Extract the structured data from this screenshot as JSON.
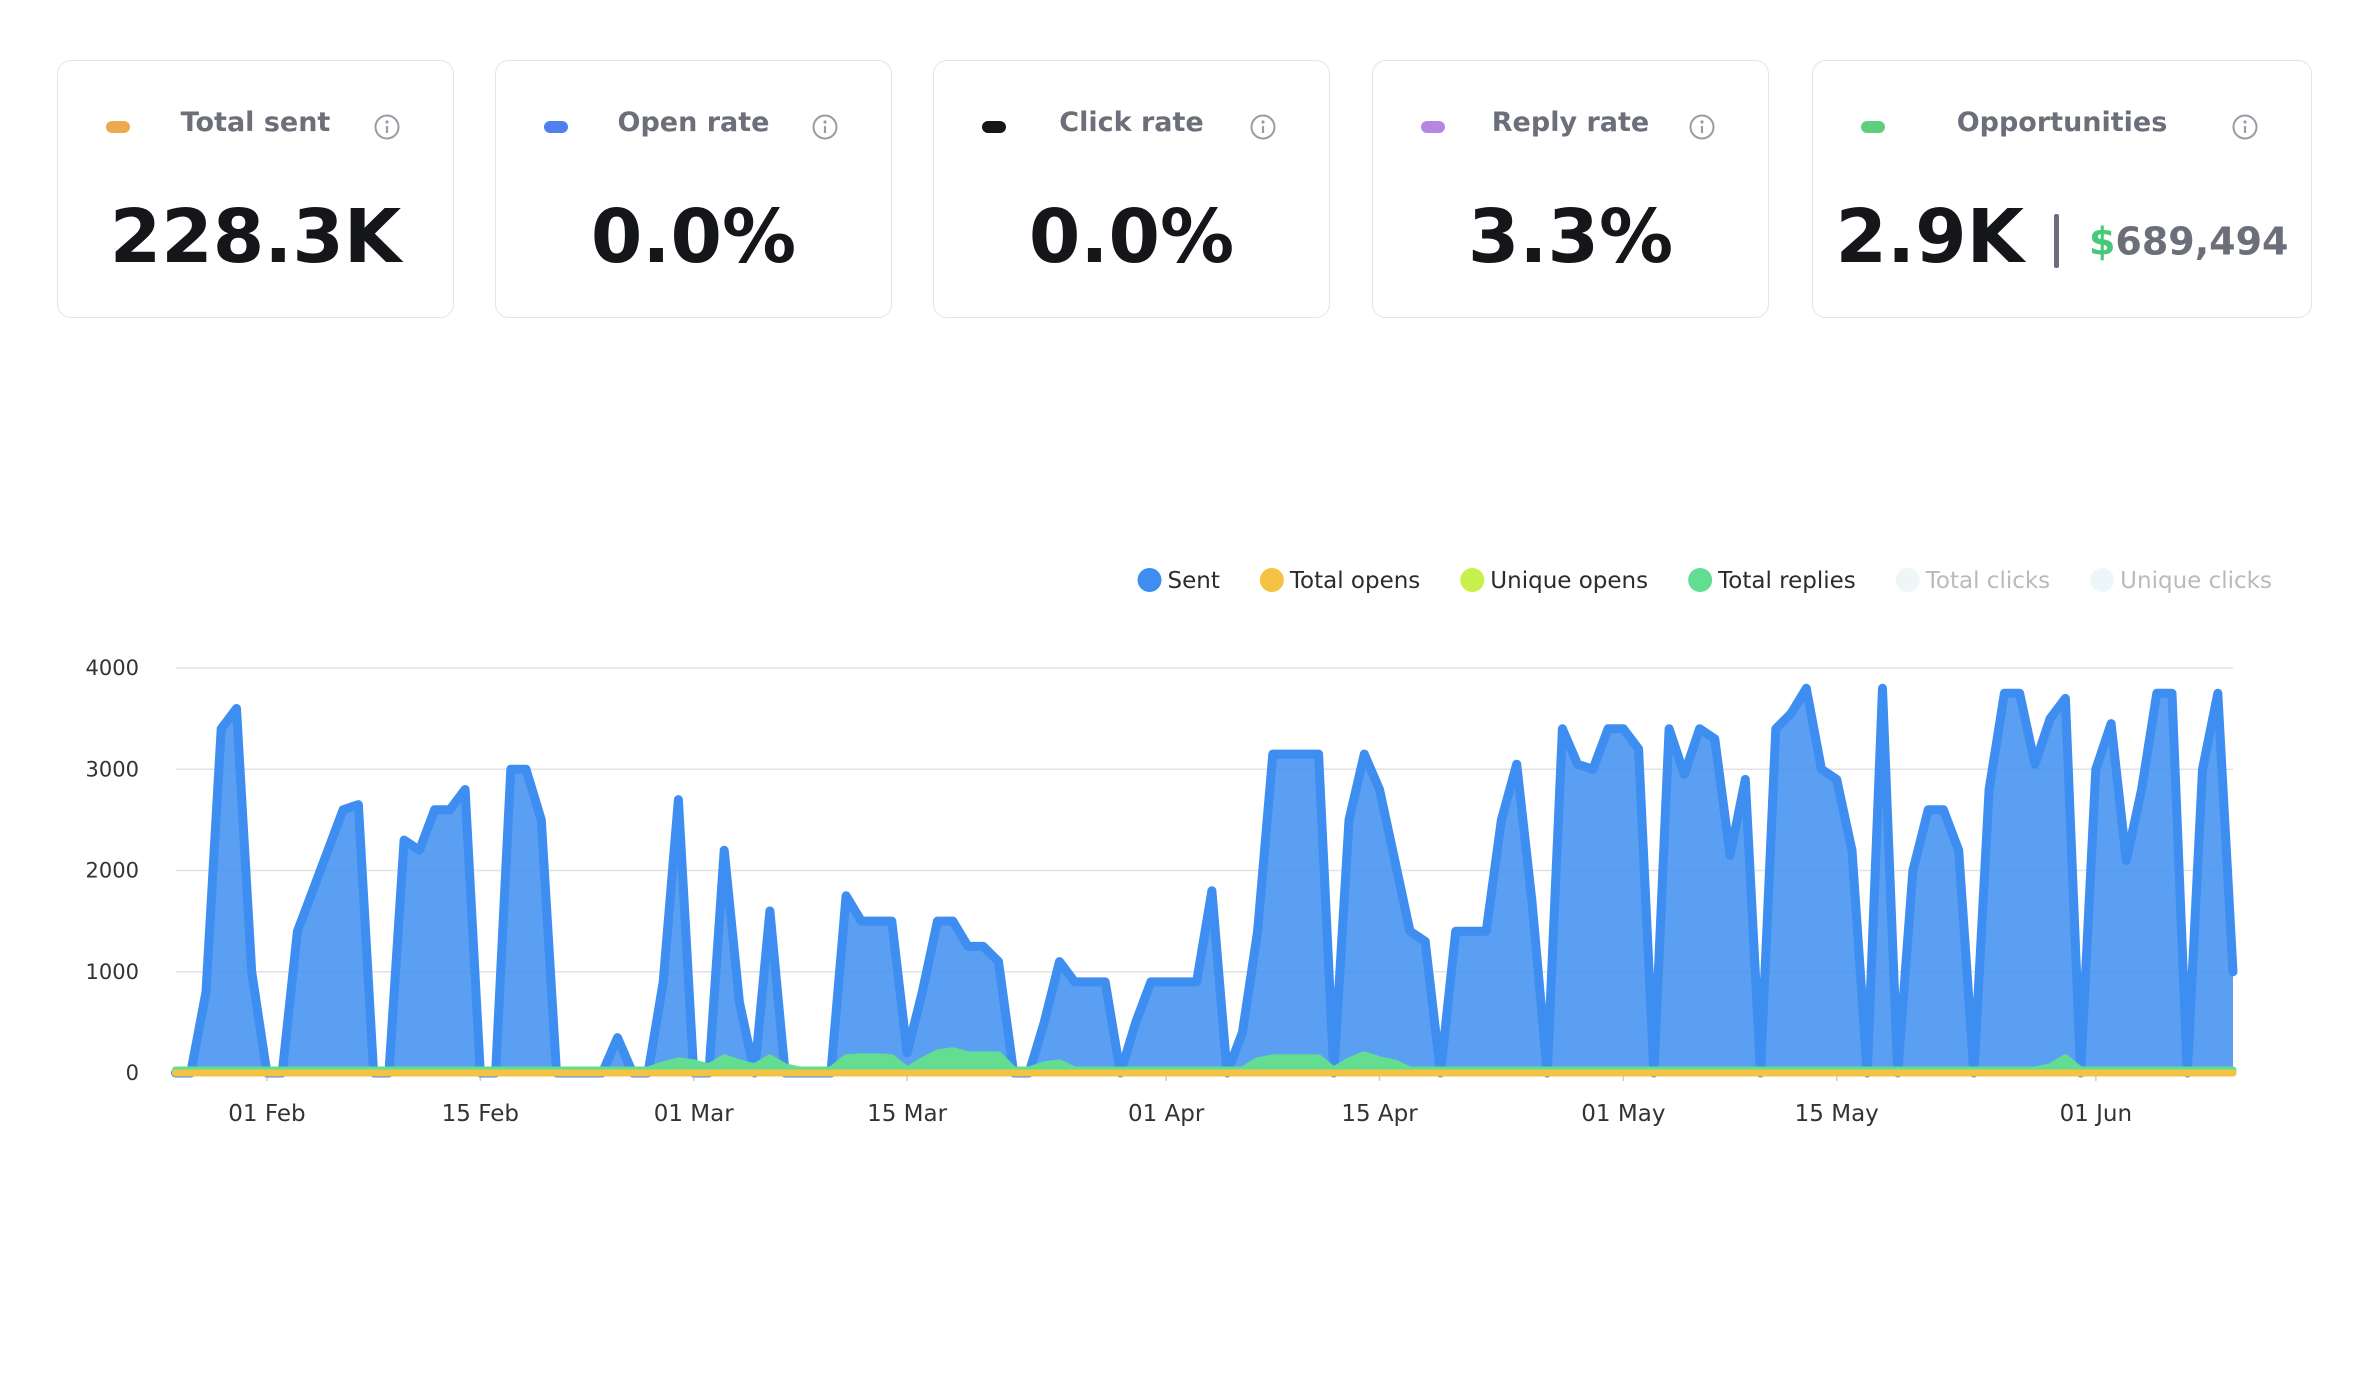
{
  "cards": [
    {
      "label": "Total sent",
      "value": "228.3K",
      "color": "#eea84f"
    },
    {
      "label": "Open rate",
      "value": "0.0%",
      "color": "#4f80ee"
    },
    {
      "label": "Click rate",
      "value": "0.0%",
      "color": "#15161a"
    },
    {
      "label": "Reply rate",
      "value": "3.3%",
      "color": "#b785e2"
    },
    {
      "label": "Opportunities",
      "value": "2.9K",
      "color": "#5fcf7d",
      "secondary": {
        "currency": "$",
        "amount": "689,494"
      }
    }
  ],
  "chart_data": {
    "type": "area",
    "categories": [
      null,
      null,
      null,
      null,
      null,
      null,
      "01 Feb",
      null,
      null,
      null,
      null,
      null,
      null,
      null,
      null,
      null,
      null,
      null,
      null,
      null,
      "15 Feb",
      null,
      null,
      null,
      null,
      null,
      null,
      null,
      null,
      null,
      null,
      null,
      null,
      null,
      "01 Mar",
      null,
      null,
      null,
      null,
      null,
      null,
      null,
      null,
      null,
      null,
      null,
      null,
      null,
      "15 Mar",
      null,
      null,
      null,
      null,
      null,
      null,
      null,
      null,
      null,
      null,
      null,
      null,
      null,
      null,
      null,
      null,
      "01 Apr",
      null,
      null,
      null,
      null,
      null,
      null,
      null,
      null,
      null,
      null,
      null,
      null,
      null,
      "15 Apr",
      null,
      null,
      null,
      null,
      null,
      null,
      null,
      null,
      null,
      null,
      null,
      null,
      null,
      null,
      null,
      "01 May",
      null,
      null,
      null,
      null,
      null,
      null,
      null,
      null,
      null,
      null,
      null,
      null,
      null,
      "15 May",
      null,
      null,
      null,
      null,
      null,
      null,
      null,
      null,
      null,
      null,
      null,
      null,
      null,
      null,
      null,
      null,
      "01 Jun",
      null,
      null,
      null,
      null,
      null,
      null,
      null,
      null,
      null
    ],
    "series": [
      {
        "name": "Sent",
        "color": "#3d8ef0",
        "values": [
          0,
          0,
          800,
          3400,
          3600,
          1000,
          0,
          0,
          1400,
          1800,
          2200,
          2600,
          2650,
          0,
          0,
          2300,
          2200,
          2600,
          2600,
          2800,
          0,
          0,
          3000,
          3000,
          2500,
          0,
          0,
          0,
          0,
          350,
          0,
          0,
          900,
          2700,
          0,
          0,
          2200,
          700,
          0,
          1600,
          0,
          0,
          0,
          0,
          1750,
          1500,
          1500,
          1500,
          200,
          800,
          1500,
          1500,
          1250,
          1250,
          1100,
          0,
          0,
          500,
          1100,
          900,
          900,
          900,
          0,
          500,
          900,
          900,
          900,
          900,
          1800,
          0,
          400,
          1400,
          3150,
          3150,
          3150,
          3150,
          0,
          2500,
          3150,
          2800,
          2100,
          1400,
          1300,
          0,
          1400,
          1400,
          1400,
          2500,
          3050,
          1700,
          0,
          3400,
          3050,
          3000,
          3400,
          3400,
          3200,
          0,
          3400,
          2950,
          3400,
          3300,
          2150,
          2900,
          0,
          3400,
          3550,
          3800,
          3000,
          2900,
          2200,
          0,
          3800,
          0,
          2000,
          2600,
          2600,
          2200,
          0,
          2800,
          3750,
          3750,
          3050,
          3500,
          3700,
          0,
          3000,
          3450,
          2100,
          2800,
          3750,
          3750,
          0,
          3000,
          3750,
          1000
        ]
      },
      {
        "name": "Total opens",
        "color": "#f5c343",
        "values": [
          0,
          0,
          0,
          0,
          0,
          0,
          0,
          0,
          0,
          0,
          0,
          0,
          0,
          0,
          0,
          0,
          0,
          0,
          0,
          0,
          0,
          0,
          0,
          0,
          0,
          0,
          0,
          0,
          0,
          0,
          0,
          0,
          0,
          0,
          0,
          0,
          0,
          0,
          0,
          0,
          0,
          0,
          0,
          0,
          0,
          0,
          0,
          0,
          0,
          0,
          0,
          0,
          0,
          0,
          0,
          0,
          0,
          0,
          0,
          0,
          0,
          0,
          0,
          0,
          0,
          0,
          0,
          0,
          0,
          0,
          0,
          0,
          0,
          0,
          0,
          0,
          0,
          0,
          0,
          0,
          0,
          0,
          0,
          0,
          0,
          0,
          0,
          0,
          0,
          0,
          0,
          0,
          0,
          0,
          0,
          0,
          0,
          0,
          0,
          0,
          0,
          0,
          0,
          0,
          0,
          0,
          0,
          0,
          0,
          0,
          0,
          0,
          0,
          0,
          0,
          0,
          0,
          0,
          0,
          0,
          0,
          0,
          0,
          0,
          0,
          0,
          0,
          0,
          0,
          0,
          0,
          0,
          0,
          0,
          0,
          0
        ]
      },
      {
        "name": "Unique opens",
        "color": "#c8f04c",
        "values": [
          0,
          0,
          0,
          0,
          0,
          0,
          0,
          0,
          0,
          0,
          0,
          0,
          0,
          0,
          0,
          0,
          0,
          0,
          0,
          0,
          0,
          0,
          0,
          0,
          0,
          0,
          0,
          0,
          0,
          0,
          0,
          0,
          0,
          0,
          0,
          0,
          0,
          0,
          0,
          0,
          0,
          0,
          0,
          0,
          0,
          0,
          0,
          0,
          0,
          0,
          0,
          0,
          0,
          0,
          0,
          0,
          0,
          0,
          0,
          0,
          0,
          0,
          0,
          0,
          0,
          0,
          0,
          0,
          0,
          0,
          0,
          0,
          0,
          0,
          0,
          0,
          0,
          0,
          0,
          0,
          0,
          0,
          0,
          0,
          0,
          0,
          0,
          0,
          0,
          0,
          0,
          0,
          0,
          0,
          0,
          0,
          0,
          0,
          0,
          0,
          0,
          0,
          0,
          0,
          0,
          0,
          0,
          0,
          0,
          0,
          0,
          0,
          0,
          0,
          0,
          0,
          0,
          0,
          0,
          0,
          0,
          0,
          0,
          0,
          0,
          0,
          0,
          0,
          0,
          0,
          0,
          0,
          0,
          0,
          0,
          0
        ]
      },
      {
        "name": "Total replies",
        "color": "#62dd92",
        "values": [
          30,
          30,
          30,
          30,
          30,
          30,
          30,
          30,
          30,
          30,
          30,
          30,
          30,
          30,
          30,
          30,
          30,
          30,
          30,
          30,
          30,
          30,
          30,
          30,
          30,
          30,
          30,
          30,
          30,
          30,
          30,
          30,
          80,
          120,
          100,
          60,
          150,
          100,
          60,
          150,
          60,
          30,
          30,
          30,
          150,
          160,
          160,
          150,
          30,
          120,
          200,
          220,
          180,
          180,
          180,
          30,
          30,
          80,
          100,
          30,
          30,
          30,
          30,
          30,
          30,
          30,
          30,
          30,
          30,
          30,
          30,
          120,
          150,
          150,
          150,
          150,
          30,
          120,
          180,
          130,
          100,
          30,
          30,
          30,
          30,
          30,
          30,
          30,
          30,
          30,
          30,
          30,
          30,
          30,
          30,
          30,
          30,
          30,
          30,
          30,
          30,
          30,
          30,
          30,
          30,
          30,
          30,
          30,
          30,
          30,
          30,
          30,
          30,
          30,
          30,
          30,
          30,
          30,
          30,
          30,
          30,
          30,
          30,
          60,
          150,
          30,
          30,
          30,
          30,
          30,
          30,
          30,
          30,
          30,
          30,
          30
        ]
      },
      {
        "name": "Total clicks",
        "color": "#eef7f5",
        "hidden": true,
        "values": [
          0,
          0,
          0,
          0,
          0,
          0,
          0,
          0,
          0,
          0,
          0,
          0,
          0,
          0,
          0,
          0,
          0,
          0,
          0,
          0,
          0,
          0,
          0,
          0,
          0,
          0,
          0,
          0,
          0,
          0,
          0,
          0,
          0,
          0,
          0,
          0,
          0,
          0,
          0,
          0,
          0,
          0,
          0,
          0,
          0,
          0,
          0,
          0,
          0,
          0,
          0,
          0,
          0,
          0,
          0,
          0,
          0,
          0,
          0,
          0,
          0,
          0,
          0,
          0,
          0,
          0,
          0,
          0,
          0,
          0,
          0,
          0,
          0,
          0,
          0,
          0,
          0,
          0,
          0,
          0,
          0,
          0,
          0,
          0,
          0,
          0,
          0,
          0,
          0,
          0,
          0,
          0,
          0,
          0,
          0,
          0,
          0,
          0,
          0,
          0,
          0,
          0,
          0,
          0,
          0,
          0,
          0,
          0,
          0,
          0,
          0,
          0,
          0,
          0,
          0,
          0,
          0,
          0,
          0,
          0,
          0,
          0,
          0,
          0,
          0,
          0,
          0,
          0,
          0,
          0,
          0,
          0,
          0,
          0,
          0,
          0
        ]
      },
      {
        "name": "Unique clicks",
        "color": "#edf7fa",
        "hidden": true,
        "values": [
          0,
          0,
          0,
          0,
          0,
          0,
          0,
          0,
          0,
          0,
          0,
          0,
          0,
          0,
          0,
          0,
          0,
          0,
          0,
          0,
          0,
          0,
          0,
          0,
          0,
          0,
          0,
          0,
          0,
          0,
          0,
          0,
          0,
          0,
          0,
          0,
          0,
          0,
          0,
          0,
          0,
          0,
          0,
          0,
          0,
          0,
          0,
          0,
          0,
          0,
          0,
          0,
          0,
          0,
          0,
          0,
          0,
          0,
          0,
          0,
          0,
          0,
          0,
          0,
          0,
          0,
          0,
          0,
          0,
          0,
          0,
          0,
          0,
          0,
          0,
          0,
          0,
          0,
          0,
          0,
          0,
          0,
          0,
          0,
          0,
          0,
          0,
          0,
          0,
          0,
          0,
          0,
          0,
          0,
          0,
          0,
          0,
          0,
          0,
          0,
          0,
          0,
          0,
          0,
          0,
          0,
          0,
          0,
          0,
          0,
          0,
          0,
          0,
          0,
          0,
          0,
          0,
          0,
          0,
          0,
          0,
          0,
          0,
          0,
          0,
          0,
          0,
          0,
          0,
          0,
          0,
          0,
          0,
          0,
          0,
          0
        ]
      }
    ],
    "ylim": [
      0,
      4000
    ],
    "yticks": [
      0,
      1000,
      2000,
      3000,
      4000
    ],
    "grid": true,
    "legend": "top-right"
  }
}
